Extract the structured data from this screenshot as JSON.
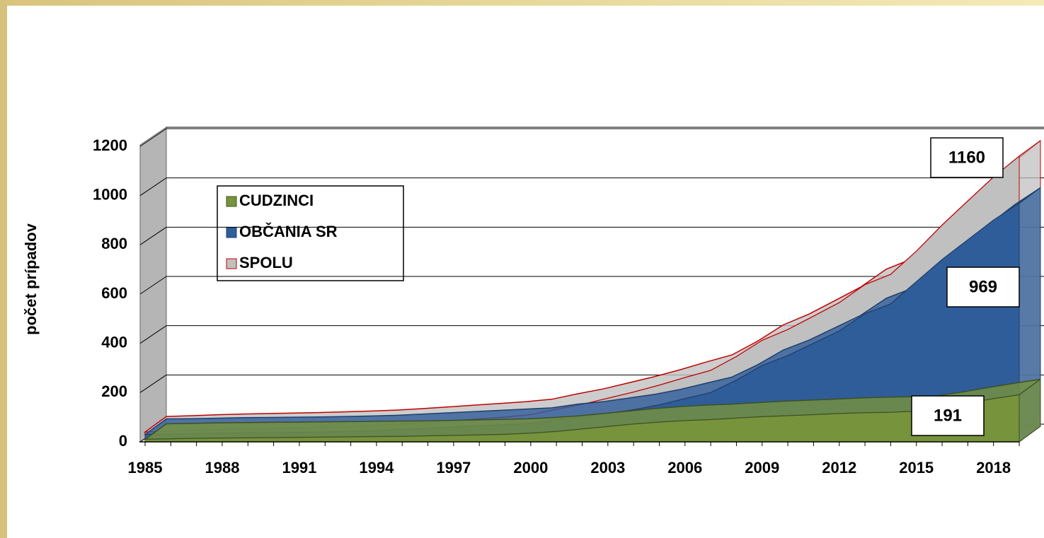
{
  "chart_data": {
    "type": "area",
    "y_axis_label": "počet prípadov",
    "categories": [
      "1985",
      null,
      null,
      "1988",
      null,
      null,
      "1991",
      null,
      null,
      "1994",
      null,
      null,
      "1997",
      null,
      null,
      "2000",
      null,
      null,
      "2003",
      null,
      null,
      "2006",
      null,
      null,
      "2009",
      null,
      null,
      "2012",
      null,
      null,
      "2015",
      null,
      null,
      "2018",
      null
    ],
    "series": [
      {
        "name": "SPOLU",
        "color": "#c0c0c0",
        "edge": "#c00000",
        "values": [
          40,
          43,
          47,
          50,
          52,
          54,
          56,
          59,
          62,
          66,
          72,
          79,
          86,
          93,
          100,
          110,
          132,
          152,
          177,
          202,
          230,
          261,
          290,
          346,
          412,
          456,
          510,
          565,
          638,
          680,
          774,
          880,
          978,
          1075,
          1160
        ]
      },
      {
        "name": "OBČANIA SR",
        "color": "#2f5d9a",
        "edge": "#1f3f6a",
        "values": [
          30,
          31,
          33,
          35,
          36,
          37,
          38,
          40,
          42,
          45,
          50,
          55,
          60,
          65,
          70,
          75,
          90,
          100,
          115,
          130,
          150,
          175,
          200,
          250,
          310,
          350,
          400,
          450,
          520,
          560,
          650,
          740,
          820,
          900,
          969
        ]
      },
      {
        "name": "CUDZINCI",
        "color": "#77933c",
        "edge": "#3f5020",
        "values": [
          10,
          12,
          14,
          15,
          16,
          17,
          18,
          19,
          20,
          21,
          22,
          24,
          26,
          28,
          30,
          35,
          42,
          52,
          62,
          72,
          80,
          86,
          90,
          96,
          102,
          106,
          110,
          115,
          118,
          120,
          124,
          140,
          158,
          175,
          191
        ]
      }
    ],
    "legend_order": [
      2,
      1,
      0
    ],
    "ylim": [
      0,
      1200
    ],
    "yticks": [
      0,
      200,
      400,
      600,
      800,
      1000,
      1200
    ],
    "grid": true
  }
}
